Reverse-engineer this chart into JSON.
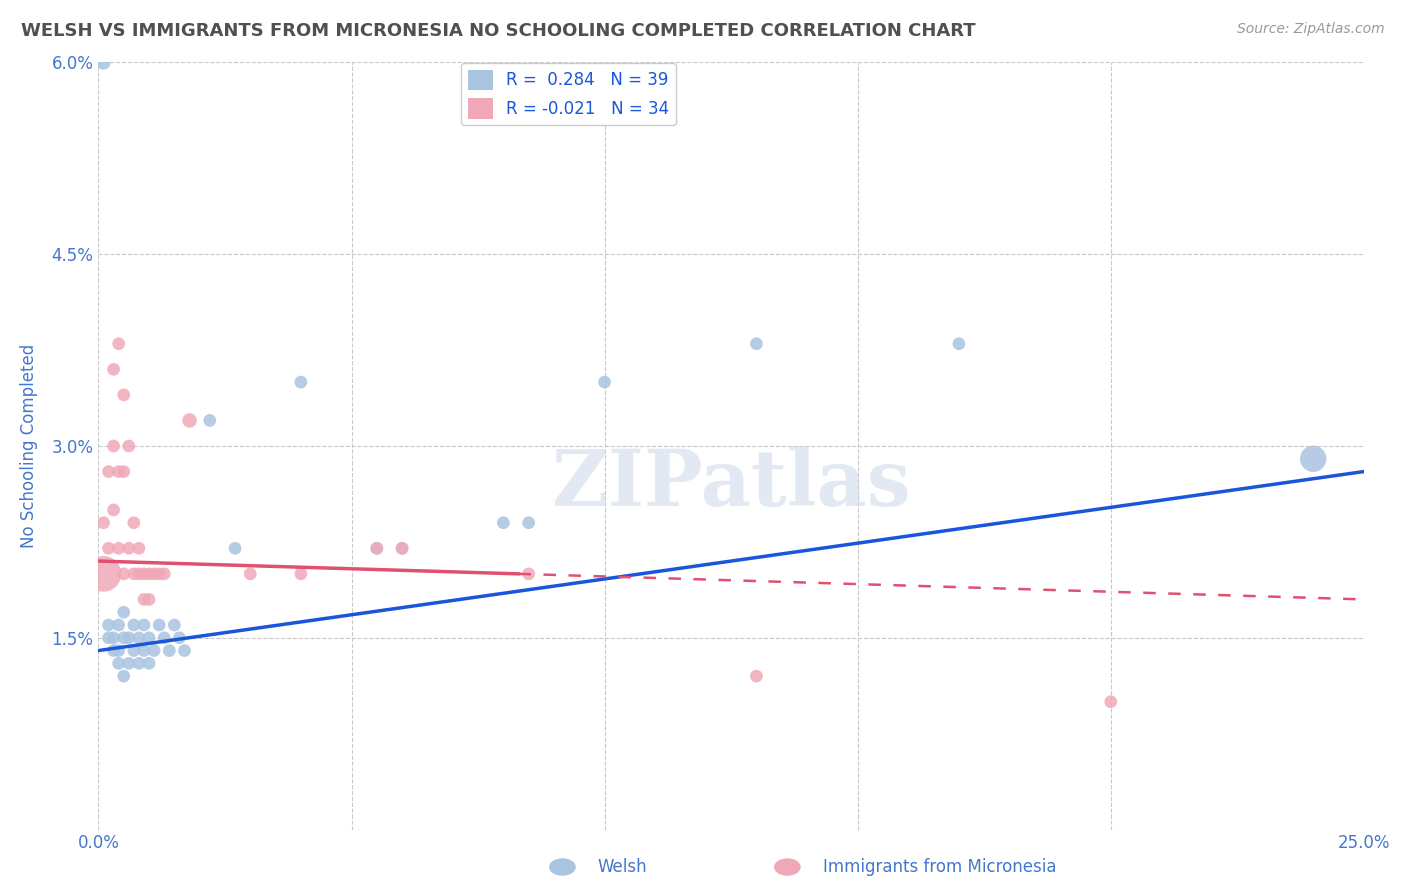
{
  "title": "WELSH VS IMMIGRANTS FROM MICRONESIA NO SCHOOLING COMPLETED CORRELATION CHART",
  "source": "Source: ZipAtlas.com",
  "ylabel": "No Schooling Completed",
  "xlim": [
    0.0,
    0.25
  ],
  "ylim": [
    0.0,
    0.06
  ],
  "xticks": [
    0.0,
    0.05,
    0.1,
    0.15,
    0.2,
    0.25
  ],
  "xticklabels": [
    "0.0%",
    "",
    "",
    "",
    "",
    "25.0%"
  ],
  "yticks": [
    0.0,
    0.015,
    0.03,
    0.045,
    0.06
  ],
  "yticklabels": [
    "",
    "1.5%",
    "3.0%",
    "4.5%",
    "6.0%"
  ],
  "legend_blue_r": "0.284",
  "legend_blue_n": "39",
  "legend_pink_r": "-0.021",
  "legend_pink_n": "34",
  "legend_blue_label": "Welsh",
  "legend_pink_label": "Immigrants from Micronesia",
  "blue_color": "#a8c4e0",
  "pink_color": "#f0a8b8",
  "blue_line_color": "#1a56db",
  "pink_line_color": "#e05070",
  "watermark": "ZIPatlas",
  "background_color": "#ffffff",
  "grid_color": "#c8c8c8",
  "title_color": "#505050",
  "axis_label_color": "#4477cc",
  "tick_color": "#4477cc",
  "blue_line_x0": 0.0,
  "blue_line_y0": 0.014,
  "blue_line_x1": 0.25,
  "blue_line_y1": 0.028,
  "pink_line_solid_x0": 0.0,
  "pink_line_solid_y0": 0.021,
  "pink_line_solid_x1": 0.083,
  "pink_line_solid_y1": 0.02,
  "pink_line_dash_x0": 0.083,
  "pink_line_dash_y0": 0.02,
  "pink_line_dash_x1": 0.25,
  "pink_line_dash_y1": 0.018,
  "welsh_points": [
    [
      0.001,
      0.06
    ],
    [
      0.002,
      0.015
    ],
    [
      0.002,
      0.016
    ],
    [
      0.003,
      0.014
    ],
    [
      0.003,
      0.015
    ],
    [
      0.004,
      0.013
    ],
    [
      0.004,
      0.014
    ],
    [
      0.004,
      0.016
    ],
    [
      0.005,
      0.012
    ],
    [
      0.005,
      0.015
    ],
    [
      0.005,
      0.017
    ],
    [
      0.006,
      0.013
    ],
    [
      0.006,
      0.015
    ],
    [
      0.007,
      0.014
    ],
    [
      0.007,
      0.016
    ],
    [
      0.008,
      0.013
    ],
    [
      0.008,
      0.015
    ],
    [
      0.009,
      0.014
    ],
    [
      0.009,
      0.016
    ],
    [
      0.01,
      0.013
    ],
    [
      0.01,
      0.015
    ],
    [
      0.011,
      0.014
    ],
    [
      0.012,
      0.016
    ],
    [
      0.013,
      0.015
    ],
    [
      0.014,
      0.014
    ],
    [
      0.015,
      0.016
    ],
    [
      0.016,
      0.015
    ],
    [
      0.017,
      0.014
    ],
    [
      0.022,
      0.032
    ],
    [
      0.027,
      0.022
    ],
    [
      0.04,
      0.035
    ],
    [
      0.055,
      0.022
    ],
    [
      0.06,
      0.022
    ],
    [
      0.08,
      0.024
    ],
    [
      0.085,
      0.024
    ],
    [
      0.1,
      0.035
    ],
    [
      0.13,
      0.038
    ],
    [
      0.17,
      0.038
    ],
    [
      0.24,
      0.029
    ]
  ],
  "welsh_sizes": [
    9,
    7,
    7,
    7,
    7,
    7,
    7,
    7,
    7,
    7,
    7,
    7,
    7,
    7,
    7,
    7,
    7,
    7,
    7,
    7,
    7,
    7,
    7,
    7,
    7,
    7,
    7,
    7,
    7,
    7,
    7,
    7,
    7,
    7,
    7,
    7,
    7,
    7,
    30
  ],
  "micronesia_points": [
    [
      0.001,
      0.02
    ],
    [
      0.001,
      0.024
    ],
    [
      0.002,
      0.022
    ],
    [
      0.002,
      0.028
    ],
    [
      0.003,
      0.025
    ],
    [
      0.003,
      0.03
    ],
    [
      0.003,
      0.036
    ],
    [
      0.004,
      0.022
    ],
    [
      0.004,
      0.028
    ],
    [
      0.004,
      0.038
    ],
    [
      0.005,
      0.02
    ],
    [
      0.005,
      0.028
    ],
    [
      0.005,
      0.034
    ],
    [
      0.006,
      0.022
    ],
    [
      0.006,
      0.03
    ],
    [
      0.007,
      0.02
    ],
    [
      0.007,
      0.024
    ],
    [
      0.008,
      0.02
    ],
    [
      0.008,
      0.022
    ],
    [
      0.009,
      0.018
    ],
    [
      0.009,
      0.02
    ],
    [
      0.01,
      0.018
    ],
    [
      0.01,
      0.02
    ],
    [
      0.011,
      0.02
    ],
    [
      0.012,
      0.02
    ],
    [
      0.013,
      0.02
    ],
    [
      0.018,
      0.032
    ],
    [
      0.03,
      0.02
    ],
    [
      0.04,
      0.02
    ],
    [
      0.055,
      0.022
    ],
    [
      0.06,
      0.022
    ],
    [
      0.085,
      0.02
    ],
    [
      0.13,
      0.012
    ],
    [
      0.2,
      0.01
    ]
  ],
  "micronesia_sizes": [
    55,
    7,
    7,
    7,
    7,
    7,
    7,
    7,
    7,
    7,
    7,
    7,
    7,
    7,
    7,
    7,
    7,
    7,
    7,
    7,
    7,
    7,
    7,
    7,
    7,
    7,
    9,
    7,
    7,
    7,
    7,
    7,
    7,
    7
  ]
}
